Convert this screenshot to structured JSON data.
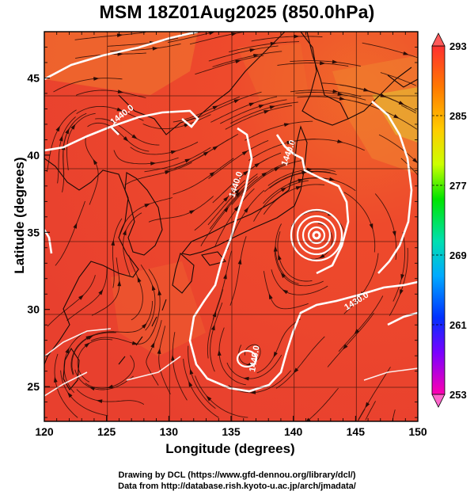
{
  "title": "MSM 18Z01Aug2025 (850.0hPa)",
  "xlabel": "Longitude (degrees)",
  "ylabel": "Latitude  (degrees)",
  "x_ticks": [
    "120",
    "125",
    "130",
    "135",
    "140",
    "145",
    "150"
  ],
  "y_ticks": [
    "25",
    "30",
    "35",
    "40",
    "45"
  ],
  "colorbar": {
    "labels": [
      "293",
      "285",
      "277",
      "269",
      "261",
      "253"
    ],
    "range": [
      253,
      293
    ],
    "colors": [
      "#ff0080",
      "#8800ff",
      "#0000ff",
      "#0088ff",
      "#00ccff",
      "#00ff88",
      "#00ff00",
      "#aaff00",
      "#ffff00",
      "#ffcc00",
      "#ff8800",
      "#ff3300"
    ]
  },
  "contours": {
    "labels": [
      "1440.0",
      "1440.0",
      "1440.0",
      "1440.0",
      "1430.0"
    ]
  },
  "credits": {
    "line1": "Drawing by DCL (https://www.gfd-dennou.org/library/dcl/)",
    "line2": "Data from http://database.rish.kyoto-u.ac.jp/arch/jmadata/"
  }
}
